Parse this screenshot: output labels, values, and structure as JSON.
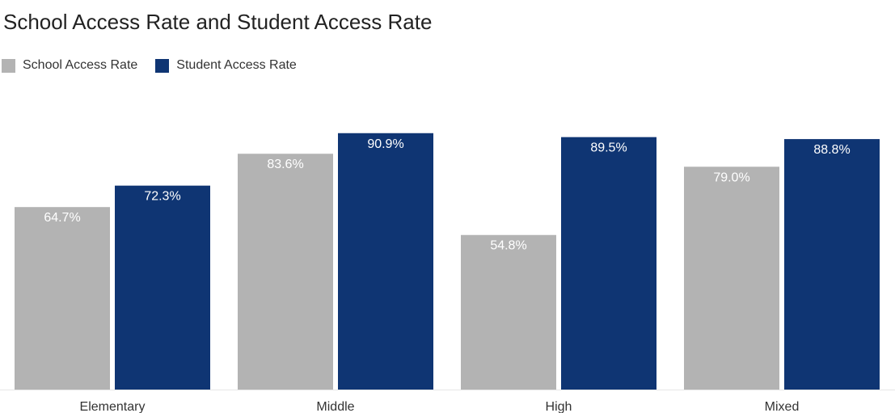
{
  "chart_data": {
    "type": "bar",
    "title": "School Access Rate and Student Access Rate",
    "categories": [
      "Elementary",
      "Middle",
      "High",
      "Mixed"
    ],
    "series": [
      {
        "name": "School Access Rate",
        "color": "#b3b3b3",
        "values": [
          64.7,
          83.6,
          54.8,
          79.0
        ],
        "labels": [
          "64.7%",
          "83.6%",
          "54.8%",
          "79.0%"
        ],
        "label_color": "#ffffff"
      },
      {
        "name": "Student Access Rate",
        "color": "#0f3573",
        "values": [
          72.3,
          90.9,
          89.5,
          88.8
        ],
        "labels": [
          "72.3%",
          "90.9%",
          "89.5%",
          "88.8%"
        ],
        "label_color": "#ffffff"
      }
    ],
    "xlabel": "",
    "ylabel": "",
    "ylim": [
      0,
      100
    ],
    "grid": false,
    "legend_position": "top-left"
  }
}
